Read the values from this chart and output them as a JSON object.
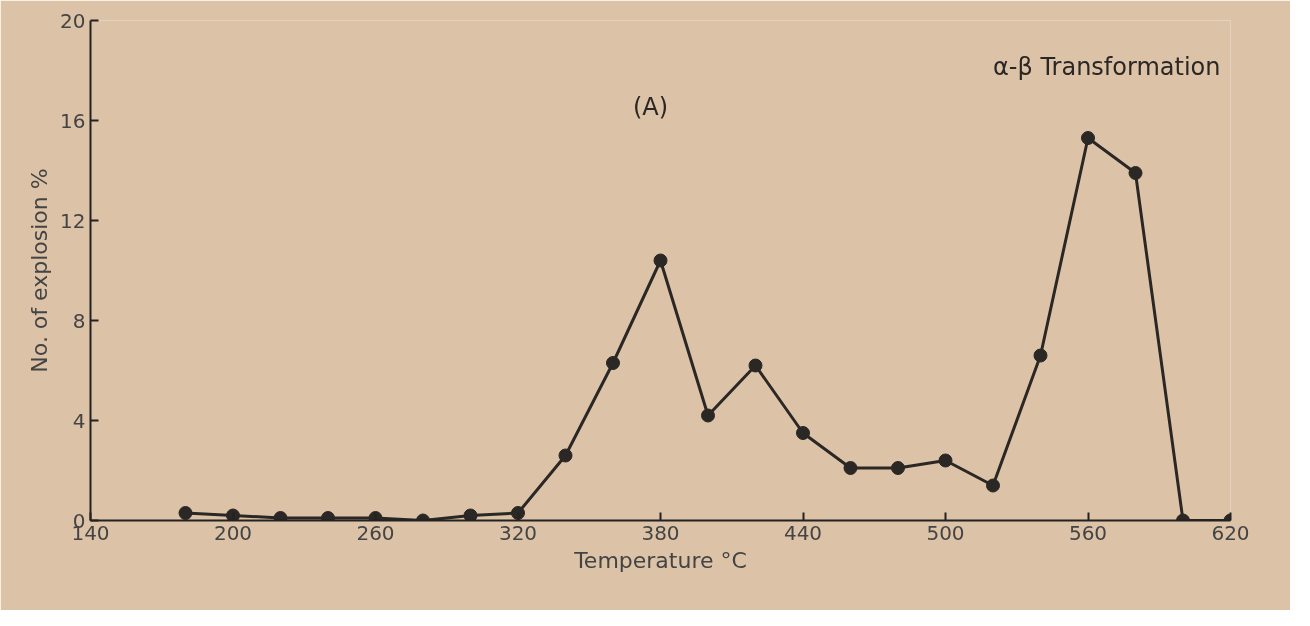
{
  "chart_data": {
    "type": "line",
    "xlabel": "Temperature °C",
    "ylabel": "No. of explosion %",
    "x": [
      180,
      200,
      220,
      240,
      260,
      280,
      300,
      320,
      340,
      360,
      380,
      400,
      420,
      440,
      460,
      480,
      500,
      520,
      540,
      560,
      580,
      600,
      620
    ],
    "series": [
      {
        "color": "#2b2724",
        "values": [
          0.3,
          0.2,
          0.1,
          0.1,
          0.1,
          0,
          0.2,
          0.3,
          2.6,
          6.3,
          10.4,
          4.2,
          6.2,
          3.5,
          2.1,
          2.1,
          2.4,
          1.4,
          6.6,
          15.3,
          13.9,
          0,
          0
        ]
      }
    ],
    "xlim": [
      140,
      620
    ],
    "ylim": [
      0,
      20
    ],
    "xticks": [
      140,
      200,
      260,
      320,
      380,
      440,
      500,
      560,
      620
    ],
    "yticks": [
      0,
      4,
      8,
      12,
      16,
      20
    ],
    "annotations": [
      "(A)",
      "α-β Transformation"
    ],
    "marker": "circle",
    "line_style": "solid",
    "grid": false
  }
}
